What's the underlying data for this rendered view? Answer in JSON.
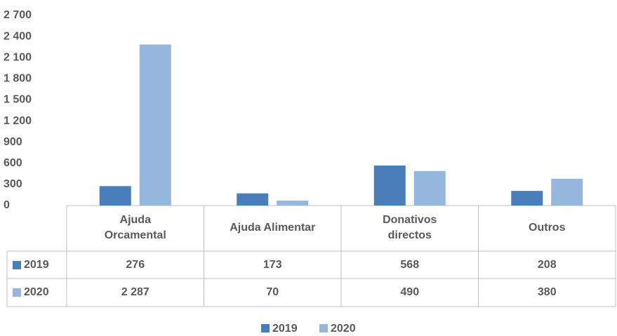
{
  "chart_data": {
    "type": "bar",
    "categories": [
      [
        "Ajuda",
        "Orcamental"
      ],
      [
        "Ajuda Alimentar"
      ],
      [
        "Donativos",
        "directos"
      ],
      [
        "Outros"
      ]
    ],
    "series": [
      {
        "name": "2019",
        "color": "#4a7ebb",
        "values": [
          276,
          173,
          568,
          208
        ]
      },
      {
        "name": "2020",
        "color": "#95b7de",
        "values": [
          2287,
          70,
          490,
          380
        ],
        "value_labels": [
          "2 287",
          "70",
          "490",
          "380"
        ]
      }
    ],
    "ylim": [
      0,
      2700
    ],
    "yticks": [
      0,
      300,
      600,
      900,
      {
        "value": 1200,
        "label": "1 200"
      },
      {
        "value": 1500,
        "label": "1 500"
      },
      {
        "value": 1800,
        "label": "1 800"
      },
      {
        "value": 2100,
        "label": "2 100"
      },
      {
        "value": 2400,
        "label": "2 400"
      },
      {
        "value": 2700,
        "label": "2 700"
      }
    ],
    "legend": "bottom"
  }
}
